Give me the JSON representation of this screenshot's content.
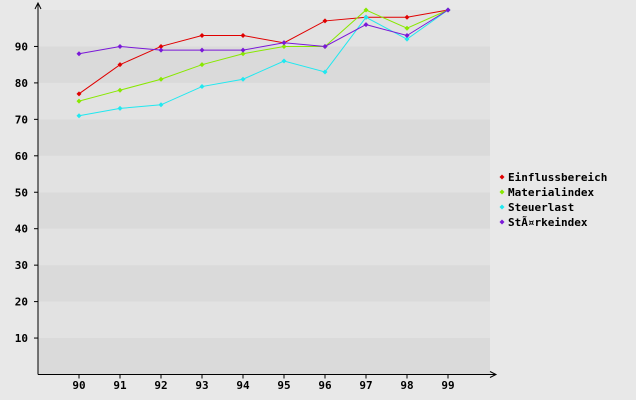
{
  "chart_data": {
    "type": "line",
    "categories": [
      "90",
      "91",
      "92",
      "93",
      "94",
      "95",
      "96",
      "97",
      "98",
      "99"
    ],
    "series": [
      {
        "name": "Einflussbereich",
        "color": "#e00000",
        "values": [
          77,
          85,
          90,
          93,
          93,
          91,
          97,
          98,
          98,
          100
        ]
      },
      {
        "name": "Materialindex",
        "color": "#88e800",
        "values": [
          75,
          78,
          81,
          85,
          88,
          90,
          90,
          100,
          95,
          100
        ]
      },
      {
        "name": "Steuerlast",
        "color": "#20e8f0",
        "values": [
          71,
          73,
          74,
          79,
          81,
          86,
          83,
          98,
          92,
          100
        ]
      },
      {
        "name": "StÃ¤rkeindex",
        "color": "#7a18d8",
        "values": [
          88,
          90,
          89,
          89,
          89,
          91,
          90,
          96,
          93,
          100
        ]
      }
    ],
    "ylim": [
      0,
      100
    ],
    "yticks": [
      10,
      20,
      30,
      40,
      50,
      60,
      70,
      80,
      90
    ],
    "grid": true,
    "legend": "right"
  }
}
